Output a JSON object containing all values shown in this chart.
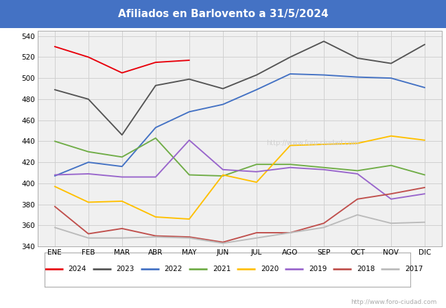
{
  "title": "Afiliados en Barlovento a 31/5/2024",
  "title_bg_color": "#4472c4",
  "title_text_color": "white",
  "ylim": [
    340,
    545
  ],
  "yticks": [
    340,
    360,
    380,
    400,
    420,
    440,
    460,
    480,
    500,
    520,
    540
  ],
  "months": [
    "ENE",
    "FEB",
    "MAR",
    "ABR",
    "MAY",
    "JUN",
    "JUL",
    "AGO",
    "SEP",
    "OCT",
    "NOV",
    "DIC"
  ],
  "watermark": "http://www.foro-ciudad.com",
  "series": {
    "2024": {
      "color": "#e8000b",
      "values": [
        530,
        520,
        505,
        515,
        517,
        null,
        null,
        null,
        null,
        null,
        null,
        null
      ]
    },
    "2023": {
      "color": "#555555",
      "values": [
        489,
        480,
        446,
        493,
        499,
        490,
        503,
        520,
        535,
        519,
        514,
        532
      ]
    },
    "2022": {
      "color": "#4472c4",
      "values": [
        407,
        420,
        416,
        453,
        468,
        475,
        489,
        504,
        503,
        501,
        500,
        491
      ]
    },
    "2021": {
      "color": "#70ad47",
      "values": [
        440,
        430,
        425,
        443,
        408,
        407,
        418,
        418,
        415,
        412,
        417,
        408
      ]
    },
    "2020": {
      "color": "#ffc000",
      "values": [
        397,
        382,
        383,
        368,
        366,
        408,
        401,
        436,
        437,
        438,
        445,
        441
      ]
    },
    "2019": {
      "color": "#9966cc",
      "values": [
        408,
        409,
        406,
        406,
        441,
        413,
        411,
        415,
        413,
        409,
        385,
        390
      ]
    },
    "2018": {
      "color": "#c0504d",
      "values": [
        378,
        352,
        357,
        350,
        349,
        344,
        353,
        353,
        362,
        385,
        390,
        396
      ]
    },
    "2017": {
      "color": "#bbbbbb",
      "values": [
        358,
        348,
        348,
        349,
        348,
        343,
        null,
        null,
        358,
        370,
        362,
        363
      ]
    }
  },
  "legend_order": [
    "2024",
    "2023",
    "2022",
    "2021",
    "2020",
    "2019",
    "2018",
    "2017"
  ],
  "grid_color": "#d0d0d0",
  "plot_bg_color": "#f0f0f0",
  "watermark_color": "#cccccc"
}
